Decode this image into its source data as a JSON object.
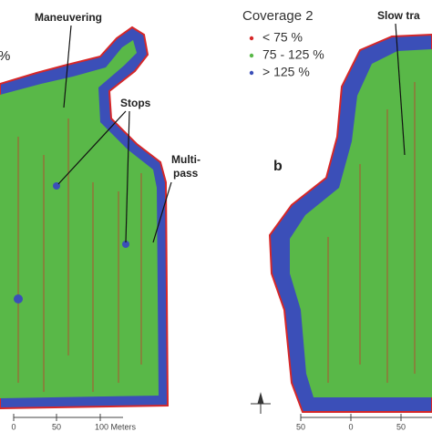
{
  "panel_a": {
    "partial_label": "%",
    "annotations": [
      "Maneuvering",
      "Stops",
      "Multi-",
      "pass"
    ],
    "scale": [
      "0",
      "50",
      "100 Meters"
    ]
  },
  "panel_b": {
    "label": "b",
    "annotation": "Slow tra",
    "scale": [
      "50",
      "0",
      "50"
    ]
  },
  "legend": {
    "title": "Coverage 2",
    "items": [
      {
        "label": "< 75 %",
        "color": "#d62728"
      },
      {
        "label": "75 - 125 %",
        "color": "#59b848"
      },
      {
        "label": "> 125 %",
        "color": "#3b4fb8"
      }
    ]
  }
}
